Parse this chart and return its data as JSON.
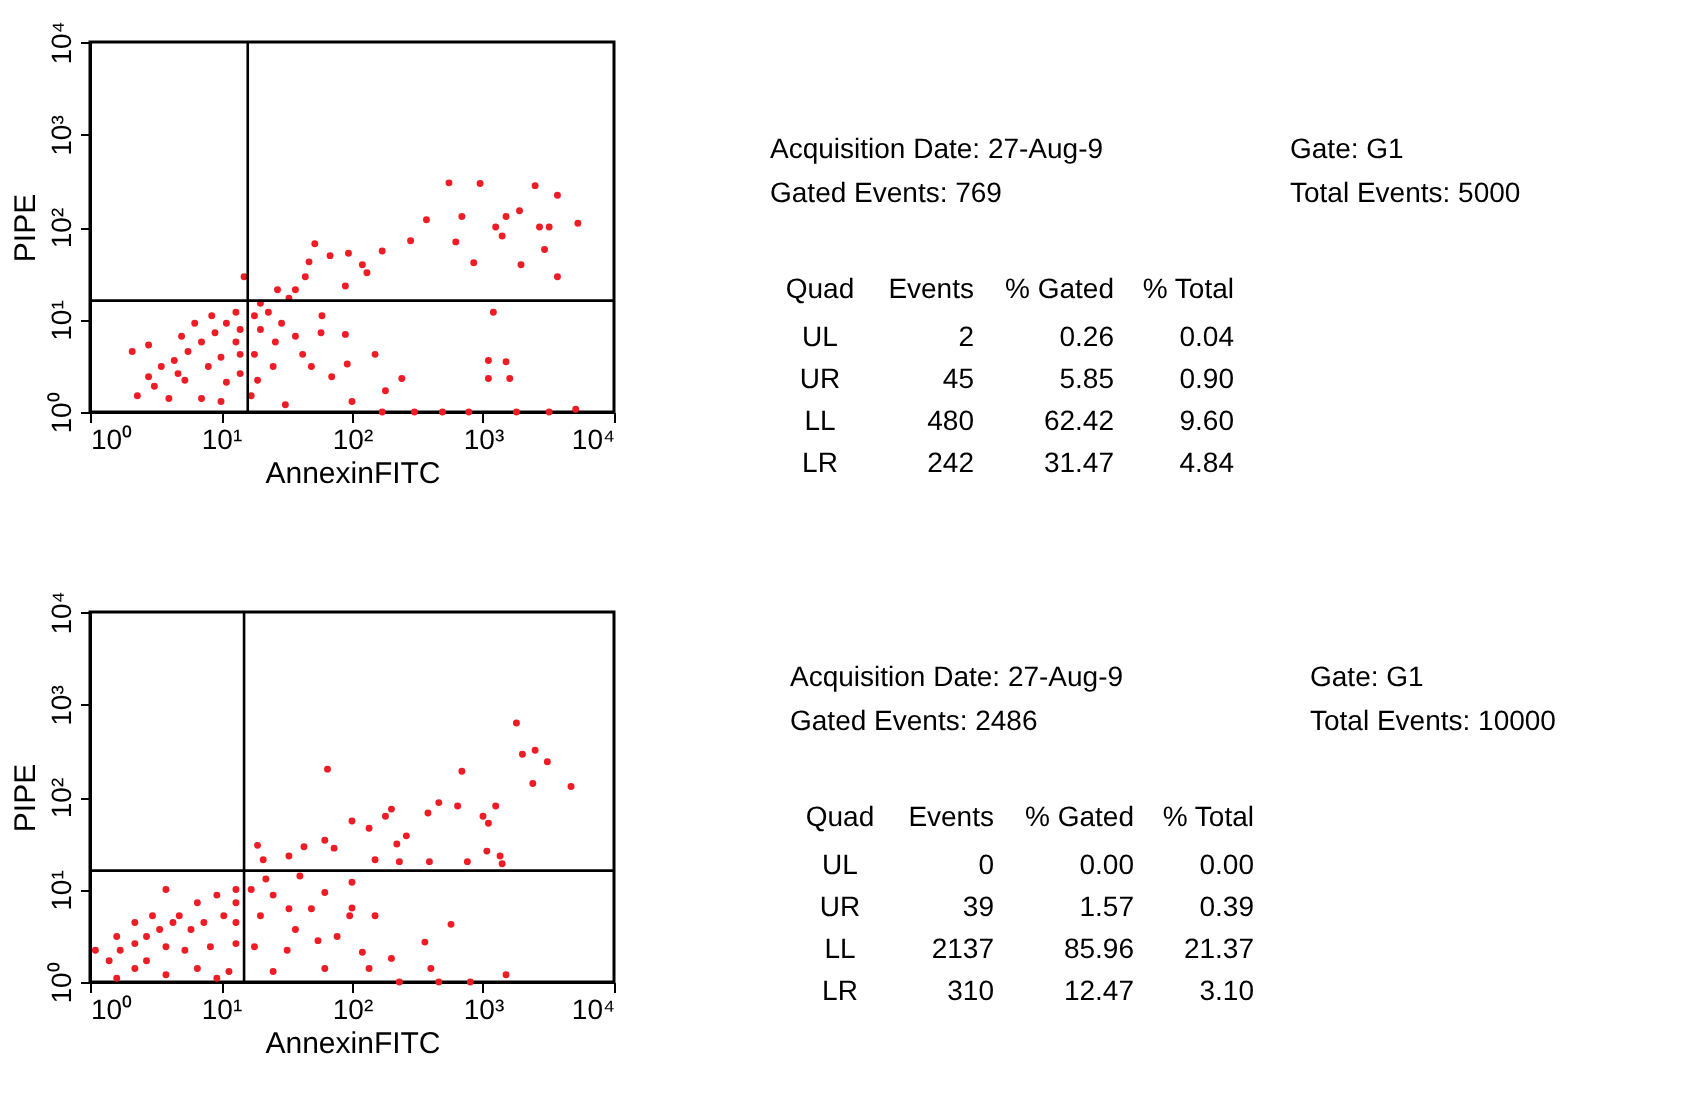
{
  "chart_data": [
    {
      "type": "scatter",
      "xlabel": "AnnexinFITC",
      "ylabel": "PIPE",
      "log": "xy",
      "xlim": [
        1,
        10000
      ],
      "ylim": [
        1,
        10000
      ],
      "xticks": [
        {
          "value": 1,
          "label": "10⁰"
        },
        {
          "value": 10,
          "label": "10¹"
        },
        {
          "value": 100,
          "label": "10²"
        },
        {
          "value": 1000,
          "label": "10³"
        },
        {
          "value": 10000,
          "label": "10⁴"
        }
      ],
      "yticks": [
        {
          "value": 1,
          "label": "10⁰"
        },
        {
          "value": 10,
          "label": "10¹"
        },
        {
          "value": 100,
          "label": "10²"
        },
        {
          "value": 1000,
          "label": "10³"
        },
        {
          "value": 10000,
          "label": "10⁴"
        }
      ],
      "marker": "circle",
      "color": "#ee1c25",
      "ref_lines": [
        {
          "axis": "x",
          "value": 16
        },
        {
          "axis": "y",
          "value": 16
        }
      ],
      "x": [
        550,
        950,
        2500,
        3700,
        370,
        690,
        1500,
        1900,
        5300,
        1250,
        2700,
        3200,
        620,
        1400,
        850,
        1950,
        2950,
        3700,
        280,
        52,
        94,
        170,
        68,
        47,
        120,
        130,
        44,
        89,
        37,
        27,
        33,
        15,
        1200,
        1100,
        1500,
        1600,
        1100,
        150,
        89,
        92,
        240,
        180,
        100,
        5100,
        59,
        58,
        49,
        70,
        31,
        170,
        300,
        490,
        780,
        1800,
        3200,
        18,
        23,
        20,
        26,
        29,
        37,
        18,
        25,
        19,
        42,
        17,
        20,
        11,
        9,
        7.1,
        13,
        5.6,
        10,
        4.4,
        8,
        3.5,
        2.8,
        5.3,
        11,
        2.1,
        2.8,
        2.3,
        4,
        7.1,
        10,
        14,
        13,
        8.5,
        5,
        6.3,
        14,
        4.7,
        3.1,
        14
      ],
      "values": [
        300,
        295,
        280,
        220,
        120,
        130,
        130,
        150,
        110,
        100,
        100,
        100,
        69,
        80,
        41,
        39,
        57,
        29,
        71,
        66,
        52,
        55,
        49,
        42,
        39,
        32,
        29,
        23,
        21,
        21,
        17,
        29,
        12,
        3.6,
        3.5,
        2.3,
        2.3,
        4.2,
        6.9,
        3.3,
        2.3,
        1.7,
        1.3,
        1.07,
        11,
        7.2,
        3.1,
        2.4,
        1.2,
        1,
        1,
        1,
        1,
        1,
        1,
        11,
        12,
        7.8,
        5.7,
        9.1,
        6.6,
        4.2,
        3.1,
        2.2,
        4.2,
        1.5,
        15,
        9.1,
        7.2,
        5.7,
        5.7,
        4.5,
        3.9,
        3.6,
        3.1,
        3.1,
        2.4,
        2.2,
        2.1,
        4.5,
        5.3,
        1.5,
        1.4,
        1.4,
        1.3,
        7.8,
        12,
        11,
        6.6,
        9.1,
        4.2,
        2.6,
        1.9,
        2.6
      ]
    },
    {
      "type": "other",
      "annotations": [
        "Acquisition Date: 27-Aug-9",
        "Gate: G1",
        "Gated Events: 769",
        "Total Events: 5000",
        "Quad",
        "Events",
        "% Gated",
        "% Total",
        "UL",
        "2",
        "0.26",
        "0.04",
        "UR",
        "45",
        "5.85",
        "0.90",
        "LL",
        "480",
        "62.42",
        "9.60",
        "LR",
        "242",
        "31.47",
        "4.84"
      ]
    },
    {
      "type": "scatter",
      "xlabel": "AnnexinFITC",
      "ylabel": "PIPE",
      "log": "xy",
      "xlim": [
        1,
        10000
      ],
      "ylim": [
        1,
        10000
      ],
      "xticks": [
        {
          "value": 1,
          "label": "10⁰"
        },
        {
          "value": 10,
          "label": "10¹"
        },
        {
          "value": 100,
          "label": "10²"
        },
        {
          "value": 1000,
          "label": "10³"
        },
        {
          "value": 10000,
          "label": "10⁴"
        }
      ],
      "yticks": [
        {
          "value": 1,
          "label": "10⁰"
        },
        {
          "value": 10,
          "label": "10¹"
        },
        {
          "value": 100,
          "label": "10²"
        },
        {
          "value": 1000,
          "label": "10³"
        },
        {
          "value": 10000,
          "label": "10⁴"
        }
      ],
      "marker": "circle",
      "color": "#ee1c25",
      "ref_lines": [
        {
          "axis": "x",
          "value": 15
        },
        {
          "axis": "y",
          "value": 16
        }
      ],
      "x": [
        1800,
        2000,
        2500,
        3100,
        2400,
        4700,
        690,
        65,
        460,
        640,
        1250,
        1000,
        1100,
        380,
        200,
        180,
        100,
        135,
        260,
        220,
        62,
        73,
        43,
        19,
        33,
        21,
        150,
        230,
        390,
        760,
        1070,
        1350,
        1400,
        100,
        100,
        150,
        96,
        570,
        360,
        200,
        120,
        135,
        400,
        1500,
        230,
        460,
        800,
        62,
        49,
        37,
        25,
        20,
        18,
        32,
        55,
        62,
        25,
        40,
        22,
        17,
        77,
        33,
        13,
        9.3,
        6.6,
        10.5,
        7.4,
        4.8,
        3.8,
        3.4,
        2.7,
        2.2,
        1.7,
        1.4,
        1.1,
        2.2,
        3.8,
        6.6,
        11.5,
        13,
        8.3,
        5.3,
        3.8,
        5.9,
        4.3,
        13,
        3,
        1.6,
        2.2,
        2.7,
        1.6,
        9.3,
        13
      ],
      "values": [
        630,
        290,
        320,
        240,
        140,
        130,
        190,
        200,
        87,
        80,
        80,
        62,
        52,
        67,
        74,
        62,
        55,
        46,
        38,
        31,
        34,
        28,
        29,
        30,
        23,
        21,
        21,
        20,
        20,
        20,
        26,
        23,
        19,
        12,
        6.3,
        5.2,
        5.2,
        4.2,
        2.7,
        1.8,
        2.1,
        1.4,
        1.4,
        1.2,
        1,
        1,
        1,
        9.3,
        6.2,
        3.7,
        8.7,
        5.2,
        2.4,
        2.2,
        2.8,
        1.4,
        1.3,
        14,
        13,
        10,
        3.1,
        6.2,
        10,
        8.7,
        7.2,
        5.2,
        4.4,
        5.2,
        10,
        3.7,
        3.1,
        2.6,
        2.2,
        1.7,
        2.2,
        1.4,
        1.2,
        1.4,
        1.3,
        2.6,
        2.4,
        2.2,
        2.4,
        3.7,
        4.4,
        4.4,
        5.2,
        3.1,
        4.4,
        1.7,
        1.1,
        1.1,
        7.2
      ]
    },
    {
      "type": "other",
      "annotations": [
        "Acquisition Date: 27-Aug-9",
        "Gate: G1",
        "Gated Events: 2486",
        "Total Events: 10000",
        "Quad",
        "Events",
        "% Gated",
        "% Total",
        "UL",
        "0",
        "0.00",
        "0.00",
        "UR",
        "39",
        "1.57",
        "0.39",
        "LL",
        "2137",
        "85.96",
        "21.37",
        "LR",
        "310",
        "12.47",
        "3.10"
      ]
    }
  ]
}
